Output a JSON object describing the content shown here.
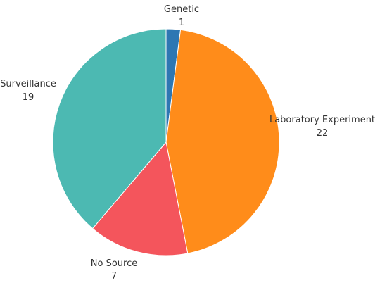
{
  "chart_data": {
    "type": "pie",
    "title": "",
    "slices": [
      {
        "label": "Genetic",
        "value": 1,
        "color": "#2E77B3"
      },
      {
        "label": "Laboratory Experiment",
        "value": 22,
        "color": "#FF8C1A"
      },
      {
        "label": "No Source",
        "value": 7,
        "color": "#F4555C"
      },
      {
        "label": "Surveillance",
        "value": 19,
        "color": "#4CB9B2"
      }
    ],
    "start_angle_deg": 0,
    "direction": "clockwise",
    "labels_outside": true
  }
}
